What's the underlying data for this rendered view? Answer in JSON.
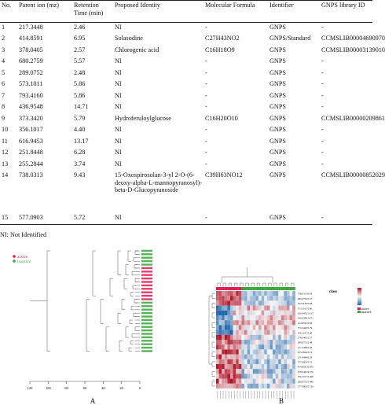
{
  "table": {
    "headers": [
      "No.",
      "Parent ion (mz)",
      "Retention Time (min)",
      "Proposed Identity",
      "Molecular Formula",
      "Identifier",
      "GNPS library ID"
    ],
    "rows": [
      [
        "1",
        "217.3448",
        "2.46",
        "NI",
        "-",
        "GNPS",
        "-"
      ],
      [
        "2",
        "414.8591",
        "6.95",
        "Solasodine",
        "C27H43NO2",
        "GNPS/Standard",
        "CCMSLIB00004690970"
      ],
      [
        "3",
        "378.0405",
        "2.57",
        "Chlorogenic acid",
        "C16H18O9",
        "GNPS",
        "CCMSLIB00003139010"
      ],
      [
        "4",
        "680.2759",
        "5.57",
        "NI",
        "-",
        "GNPS",
        "-"
      ],
      [
        "5",
        "289.0752",
        "2.48",
        "NI",
        "-",
        "GNPS",
        "-"
      ],
      [
        "6",
        "573.1011",
        "5.86",
        "NI",
        "-",
        "GNPS",
        "-"
      ],
      [
        "7",
        "793.4160",
        "5.86",
        "NI",
        "-",
        "GNPS",
        "-"
      ],
      [
        "8",
        "436.9548",
        "14.71",
        "NI",
        "-",
        "GNPS",
        "-"
      ],
      [
        "9",
        "373.3420",
        "5.79",
        "Hydroferuloylglucose",
        "C16H20O10",
        "GNPS",
        "CCMSLIB00000209861"
      ],
      [
        "10",
        "356.1017",
        "4.40",
        "NI",
        "-",
        "GNPS",
        "-"
      ],
      [
        "11",
        "616.9453",
        "13.17",
        "NI",
        "-",
        "GNPS",
        "-"
      ],
      [
        "12",
        "251.8448",
        "6.28",
        "NI",
        "-",
        "GNPS",
        "-"
      ],
      [
        "13",
        "255.2844",
        "3.74",
        "NI",
        "-",
        "GNPS",
        "-"
      ],
      [
        "14",
        "738.0313",
        "9.43",
        "15-Oxospirosolan-3-yl 2-O-(6-deoxy-alpha-L-mannopyranosyl)-beta-D-Glucopyranoside",
        "C39H63NO12",
        "GNPS",
        "CCMSLIB00000852029"
      ],
      [
        "15",
        "577.0903",
        "5.72",
        "NI",
        "-",
        "GNPS",
        "-"
      ]
    ]
  },
  "footnote": "NI: Not Identified",
  "panel_a": {
    "label": "A",
    "legend": [
      {
        "name": "active",
        "color": "#e0194f"
      },
      {
        "name": "inactive",
        "color": "#3aa63a"
      }
    ],
    "axis_ticks": [
      "120",
      "100",
      "80",
      "60",
      "40",
      "20",
      "0"
    ]
  },
  "panel_b": {
    "label": "B",
    "legend_title": "class",
    "legend_items": [
      {
        "name": "active",
        "color": "#e0194f"
      },
      {
        "name": "inactive",
        "color": "#3aa63a"
      }
    ],
    "row_labels": [
      "738.0313/9.43",
      "680.2759/5.57",
      "793.4160/5.86",
      "573.1011/5.86",
      "616.9453/13.17",
      "436.9548/14.71",
      "414.8591/6.95",
      "373.3420/5.79",
      "356.1017/4.40",
      "378.0405/2.57",
      "289.0752/2.48",
      "217.3448/2.46",
      "255.2844/3.74",
      "251.8448/6.28",
      "577.0903/5.72",
      "414.8591/6.95b",
      "378.0405/2.57b",
      "356.1017/4.40b",
      "289.0752/2.48b",
      "577.0903/5.72b"
    ],
    "colors": {
      "high": "#b2182b",
      "mid": "#f7f7f7",
      "low": "#2166ac"
    }
  }
}
